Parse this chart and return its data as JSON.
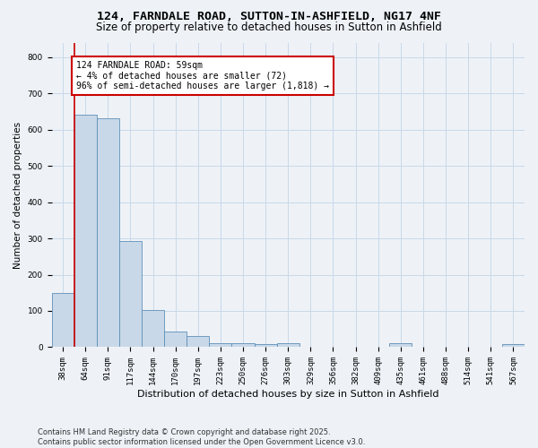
{
  "title": "124, FARNDALE ROAD, SUTTON-IN-ASHFIELD, NG17 4NF",
  "subtitle": "Size of property relative to detached houses in Sutton in Ashfield",
  "xlabel": "Distribution of detached houses by size in Sutton in Ashfield",
  "ylabel": "Number of detached properties",
  "footer_line1": "Contains HM Land Registry data © Crown copyright and database right 2025.",
  "footer_line2": "Contains public sector information licensed under the Open Government Licence v3.0.",
  "bin_labels": [
    "38sqm",
    "64sqm",
    "91sqm",
    "117sqm",
    "144sqm",
    "170sqm",
    "197sqm",
    "223sqm",
    "250sqm",
    "276sqm",
    "303sqm",
    "329sqm",
    "356sqm",
    "382sqm",
    "409sqm",
    "435sqm",
    "461sqm",
    "488sqm",
    "514sqm",
    "541sqm",
    "567sqm"
  ],
  "bar_values": [
    150,
    640,
    630,
    293,
    103,
    43,
    30,
    10,
    10,
    8,
    10,
    0,
    0,
    0,
    0,
    10,
    0,
    0,
    0,
    0,
    8
  ],
  "bar_color": "#c8d8e8",
  "bar_edge_color": "#6090b8",
  "grid_color": "#c8d8e8",
  "vline_x": 0.5,
  "vline_color": "#cc0000",
  "annotation_text": "124 FARNDALE ROAD: 59sqm\n← 4% of detached houses are smaller (72)\n96% of semi-detached houses are larger (1,818) →",
  "annotation_box_color": "white",
  "annotation_box_edge": "#cc0000",
  "ylim": [
    0,
    840
  ],
  "bg_color": "#eef2f7",
  "title_fontsize": 9.5,
  "subtitle_fontsize": 8.5,
  "tick_fontsize": 6.5,
  "ylabel_fontsize": 7.5,
  "xlabel_fontsize": 8,
  "annot_fontsize": 7,
  "footer_fontsize": 6
}
